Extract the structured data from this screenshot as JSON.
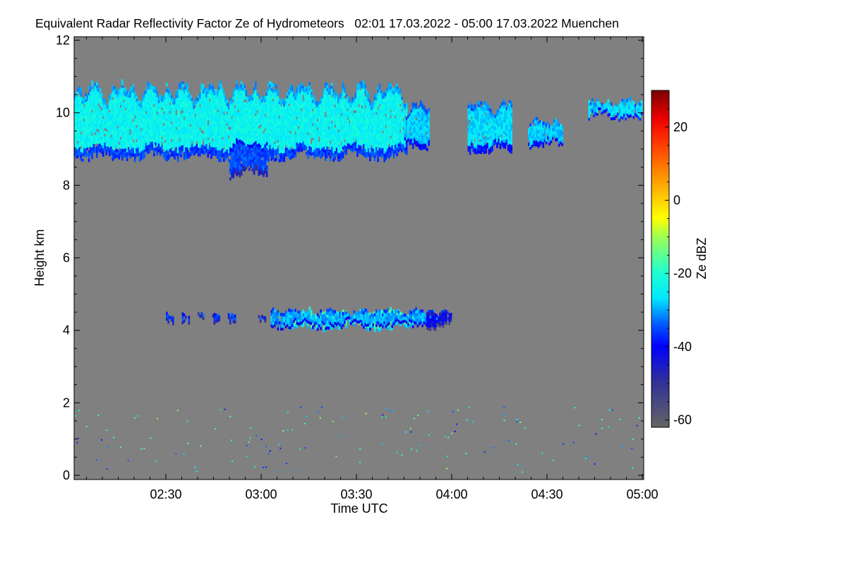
{
  "chart_data": {
    "type": "heatmap",
    "title": "Equivalent Radar Reflectivity Factor Ze of Hydrometeors   02:01 17.03.2022 - 05:00 17.03.2022 Muenchen",
    "xlabel": "Time UTC",
    "ylabel": "Height km",
    "colorbar_label": "Ze dBZ",
    "xlim_minutes_utc": [
      121,
      300
    ],
    "ylim": [
      0,
      12
    ],
    "x_ticks": [
      {
        "label": "02:30",
        "min": 150
      },
      {
        "label": "03:00",
        "min": 180
      },
      {
        "label": "03:30",
        "min": 210
      },
      {
        "label": "04:00",
        "min": 240
      },
      {
        "label": "04:30",
        "min": 270
      },
      {
        "label": "05:00",
        "min": 300
      }
    ],
    "y_ticks": [
      "0",
      "2",
      "4",
      "6",
      "8",
      "10",
      "12"
    ],
    "colorbar_ticks": [
      "20",
      "0",
      "-20",
      "-40",
      "-60"
    ],
    "colorbar_range": [
      -62,
      30
    ],
    "background_color": "#808080",
    "features": [
      {
        "name": "cirrus-main",
        "t0": 121,
        "t1": 226,
        "base": 8.7,
        "top": 10.9,
        "dbz": -24
      },
      {
        "name": "cirrus-fall",
        "t0": 170,
        "t1": 182,
        "base": 8.2,
        "top": 9.3,
        "dbz": -35
      },
      {
        "name": "cirrus-patch-1",
        "t0": 225,
        "t1": 233,
        "base": 9.0,
        "top": 10.3,
        "dbz": -28
      },
      {
        "name": "cirrus-patch-2",
        "t0": 245,
        "t1": 259,
        "base": 8.9,
        "top": 10.4,
        "dbz": -27
      },
      {
        "name": "cirrus-patch-3",
        "t0": 264,
        "t1": 275,
        "base": 9.0,
        "top": 9.9,
        "dbz": -28
      },
      {
        "name": "cirrus-patch-4",
        "t0": 283,
        "t1": 300,
        "base": 9.8,
        "top": 10.4,
        "dbz": -27
      },
      {
        "name": "midlevel-core",
        "t0": 188,
        "t1": 228,
        "base": 4.0,
        "top": 4.6,
        "dbz": -16
      },
      {
        "name": "midlevel-edge",
        "t0": 183,
        "t1": 238,
        "base": 4.05,
        "top": 4.6,
        "dbz": -30
      },
      {
        "name": "midlevel-fragments",
        "t0": 148,
        "t1": 183,
        "base": 4.2,
        "top": 4.5,
        "dbz": -36
      },
      {
        "name": "midlevel-tail",
        "t0": 232,
        "t1": 240,
        "base": 4.05,
        "top": 4.6,
        "dbz": -42
      }
    ]
  }
}
